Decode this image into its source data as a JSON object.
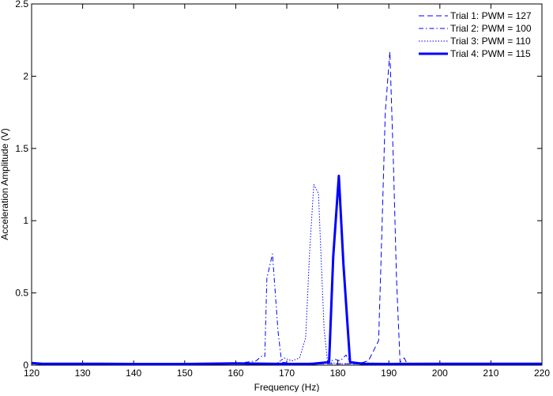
{
  "chart_data": {
    "type": "line",
    "title": "",
    "xlabel": "Frequency (Hz)",
    "ylabel": "Acceleration Amplitude (V)",
    "xlim": [
      120,
      220
    ],
    "ylim": [
      0,
      2.5
    ],
    "xticks": [
      120,
      130,
      140,
      150,
      160,
      170,
      180,
      190,
      200,
      210,
      220
    ],
    "yticks": [
      0,
      0.5,
      1,
      1.5,
      2,
      2.5
    ],
    "ytick_labels": [
      "0",
      "0.5",
      "1",
      "1.5",
      "2",
      "2.5"
    ],
    "grid": false,
    "legend_position": "top-right",
    "color": "#0000ff",
    "series": [
      {
        "name": "Trial 1: PWM = 127",
        "style": "dashed",
        "width": 1,
        "points": [
          [
            120,
            0.01
          ],
          [
            130,
            0.008
          ],
          [
            140,
            0.01
          ],
          [
            150,
            0.008
          ],
          [
            160,
            0.01
          ],
          [
            170,
            0.008
          ],
          [
            180,
            0.01
          ],
          [
            184,
            0.01
          ],
          [
            186,
            0.03
          ],
          [
            188,
            0.17
          ],
          [
            188.7,
            1.0
          ],
          [
            189.3,
            1.75
          ],
          [
            190.2,
            2.17
          ],
          [
            190.9,
            1.4
          ],
          [
            191.5,
            0.6
          ],
          [
            192.2,
            0.02
          ],
          [
            193,
            0.05
          ],
          [
            193.6,
            0.01
          ],
          [
            200,
            0.01
          ],
          [
            210,
            0.008
          ],
          [
            220,
            0.01
          ]
        ]
      },
      {
        "name": "Trial 2: PWM = 100",
        "style": "dashdot",
        "width": 1,
        "points": [
          [
            120,
            0.01
          ],
          [
            140,
            0.01
          ],
          [
            160,
            0.01
          ],
          [
            164,
            0.03
          ],
          [
            165.2,
            0.065
          ],
          [
            165.7,
            0.06
          ],
          [
            166.1,
            0.6
          ],
          [
            167.2,
            0.77
          ],
          [
            168.3,
            0.23
          ],
          [
            169,
            0.02
          ],
          [
            172,
            0.01
          ],
          [
            178,
            0.02
          ],
          [
            179.5,
            0.04
          ],
          [
            180.5,
            0.03
          ],
          [
            181.6,
            0.07
          ],
          [
            182.5,
            0.02
          ],
          [
            190,
            0.01
          ],
          [
            220,
            0.01
          ]
        ]
      },
      {
        "name": "Trial 3: PWM = 110",
        "style": "dotted",
        "width": 1,
        "points": [
          [
            120,
            0.01
          ],
          [
            140,
            0.01
          ],
          [
            160,
            0.01
          ],
          [
            168,
            0.01
          ],
          [
            169.5,
            0.05
          ],
          [
            171,
            0.03
          ],
          [
            172.5,
            0.05
          ],
          [
            173.7,
            0.19
          ],
          [
            174.5,
            0.8
          ],
          [
            175.3,
            1.25
          ],
          [
            176.2,
            1.19
          ],
          [
            177.3,
            0.25
          ],
          [
            178,
            0.02
          ],
          [
            180,
            0.01
          ],
          [
            200,
            0.01
          ],
          [
            220,
            0.01
          ]
        ]
      },
      {
        "name": "Trial 4: PWM = 115",
        "style": "solid",
        "width": 3,
        "points": [
          [
            120,
            0.015
          ],
          [
            122,
            0.01
          ],
          [
            130,
            0.01
          ],
          [
            140,
            0.008
          ],
          [
            150,
            0.008
          ],
          [
            160,
            0.012
          ],
          [
            170,
            0.008
          ],
          [
            175,
            0.01
          ],
          [
            178.3,
            0.02
          ],
          [
            179.1,
            0.75
          ],
          [
            180.2,
            1.31
          ],
          [
            181.1,
            0.7
          ],
          [
            182.4,
            0.02
          ],
          [
            185,
            0.01
          ],
          [
            190,
            0.008
          ],
          [
            200,
            0.01
          ],
          [
            210,
            0.01
          ],
          [
            220,
            0.01
          ]
        ]
      }
    ]
  }
}
